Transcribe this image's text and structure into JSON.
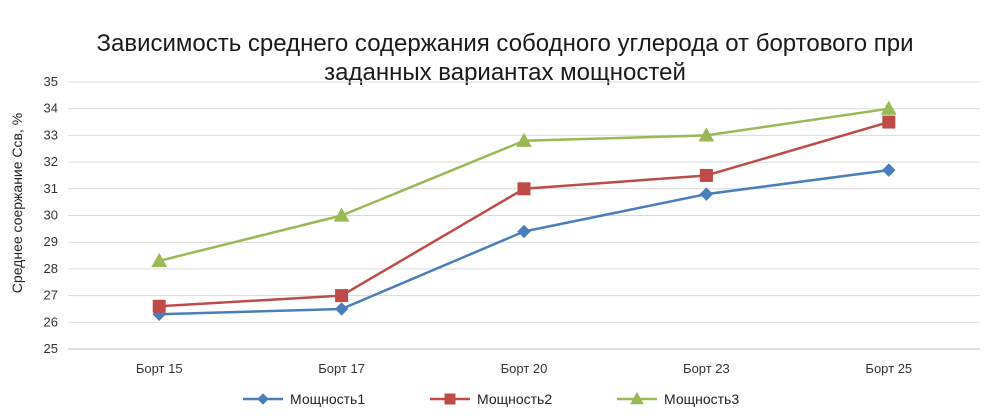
{
  "chart_data": {
    "type": "line",
    "title": "Зависимость среднего содержания сободного углерода от бортового при заданных вариантах мощностей",
    "title_lines": [
      "Зависимость среднего содержания сободного углерода от бортового при",
      "заданных вариантах мощностей"
    ],
    "xlabel": "",
    "ylabel": "Среднее соержание Ссв, %",
    "categories": [
      "Борт 15",
      "Борт 17",
      "Борт 20",
      "Борт 23",
      "Борт 25"
    ],
    "ylim": [
      25,
      35
    ],
    "yticks": [
      "25",
      "26",
      "27",
      "28",
      "29",
      "30",
      "31",
      "32",
      "33",
      "34",
      "35"
    ],
    "grid": "horizontal",
    "legend_position": "bottom",
    "series": [
      {
        "name": "Мощность1",
        "values": [
          26.3,
          26.5,
          29.4,
          30.8,
          31.7
        ],
        "color": "#4a7ebb",
        "marker": "diamond"
      },
      {
        "name": "Мощность2",
        "values": [
          26.6,
          27.0,
          31.0,
          31.5,
          33.5
        ],
        "color": "#be4b48",
        "marker": "square"
      },
      {
        "name": "Мощность3",
        "values": [
          28.3,
          30.0,
          32.8,
          33.0,
          34.0
        ],
        "color": "#98b954",
        "marker": "triangle"
      }
    ]
  }
}
